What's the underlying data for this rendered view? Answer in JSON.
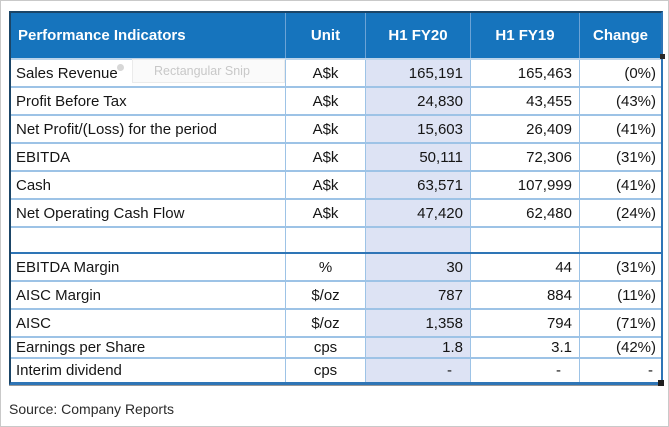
{
  "table": {
    "columns": [
      "Performance Indicators",
      "Unit",
      "H1 FY20",
      "H1 FY19",
      "Change"
    ],
    "rows": [
      {
        "label": "Sales Revenue",
        "unit": "A$k",
        "fy20": "165,191",
        "fy19": "165,463",
        "change": "(0%)"
      },
      {
        "label": "Profit Before Tax",
        "unit": "A$k",
        "fy20": "24,830",
        "fy19": "43,455",
        "change": "(43%)"
      },
      {
        "label": "Net Profit/(Loss) for the period",
        "unit": "A$k",
        "fy20": "15,603",
        "fy19": "26,409",
        "change": "(41%)"
      },
      {
        "label": "EBITDA",
        "unit": "A$k",
        "fy20": "50,111",
        "fy19": "72,306",
        "change": "(31%)"
      },
      {
        "label": "Cash",
        "unit": "A$k",
        "fy20": "63,571",
        "fy19": "107,999",
        "change": "(41%)"
      },
      {
        "label": "Net Operating Cash Flow",
        "unit": "A$k",
        "fy20": "47,420",
        "fy19": "62,480",
        "change": "(24%)"
      },
      {
        "label": "",
        "unit": "",
        "fy20": "",
        "fy19": "",
        "change": ""
      },
      {
        "label": "EBITDA Margin",
        "unit": "%",
        "fy20": "30",
        "fy19": "44",
        "change": "(31%)"
      },
      {
        "label": "AISC Margin",
        "unit": "$/oz",
        "fy20": "787",
        "fy19": "884",
        "change": "(11%)"
      },
      {
        "label": "AISC",
        "unit": "$/oz",
        "fy20": "1,358",
        "fy19": "794",
        "change": "(71%)"
      },
      {
        "label": "Earnings per Share",
        "unit": "cps",
        "fy20": "1.8",
        "fy19": "3.1",
        "change": "(42%)"
      },
      {
        "label": "Interim dividend",
        "unit": "cps",
        "fy20": "-",
        "fy19": "-",
        "change": "-"
      }
    ]
  },
  "overlay": {
    "snip_tooltip": "Rectangular Snip"
  },
  "footer": {
    "source": "Source: Company Reports"
  },
  "colors": {
    "header_blue": "#1674bd",
    "grid_light_blue": "#9dc3e6",
    "section_blue": "#2e75b6",
    "fy20_column_fill": "#dde3f4",
    "outer_border_dark": "#1b4567"
  }
}
